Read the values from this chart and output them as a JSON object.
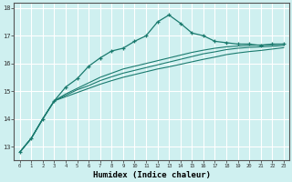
{
  "xlabel": "Humidex (Indice chaleur)",
  "ylabel": "",
  "background_color": "#cff0f0",
  "line_color": "#1a7a6e",
  "grid_color": "#ffffff",
  "xlim": [
    -0.5,
    23.5
  ],
  "ylim": [
    12.5,
    18.2
  ],
  "yticks": [
    13,
    14,
    15,
    16,
    17,
    18
  ],
  "xticks": [
    0,
    1,
    2,
    3,
    4,
    5,
    6,
    7,
    8,
    9,
    10,
    11,
    12,
    13,
    14,
    15,
    16,
    17,
    18,
    19,
    20,
    21,
    22,
    23
  ],
  "series1_x": [
    0,
    1,
    2,
    3,
    4,
    5,
    6,
    7,
    8,
    9,
    10,
    11,
    12,
    13,
    14,
    15,
    16,
    17,
    18,
    19,
    20,
    21,
    22,
    23
  ],
  "series1_y": [
    12.8,
    13.3,
    14.0,
    14.65,
    15.15,
    15.45,
    15.9,
    16.2,
    16.45,
    16.55,
    16.8,
    17.0,
    17.5,
    17.75,
    17.45,
    17.1,
    17.0,
    16.8,
    16.75,
    16.7,
    16.7,
    16.65,
    16.7,
    16.7
  ],
  "series2_x": [
    0,
    1,
    2,
    3,
    4,
    5,
    6,
    7,
    8,
    9,
    10,
    11,
    12,
    13,
    14,
    15,
    16,
    17,
    18,
    19,
    20,
    21,
    22,
    23
  ],
  "series2_y": [
    12.8,
    13.3,
    14.0,
    14.65,
    14.9,
    15.1,
    15.3,
    15.5,
    15.65,
    15.8,
    15.9,
    16.0,
    16.1,
    16.2,
    16.3,
    16.4,
    16.48,
    16.55,
    16.6,
    16.63,
    16.65,
    16.67,
    16.68,
    16.7
  ],
  "series3_x": [
    0,
    1,
    2,
    3,
    4,
    5,
    6,
    7,
    8,
    9,
    10,
    11,
    12,
    13,
    14,
    15,
    16,
    17,
    18,
    19,
    20,
    21,
    22,
    23
  ],
  "series3_y": [
    12.8,
    13.3,
    14.0,
    14.65,
    14.85,
    15.05,
    15.2,
    15.38,
    15.52,
    15.65,
    15.75,
    15.85,
    15.95,
    16.05,
    16.15,
    16.25,
    16.35,
    16.42,
    16.5,
    16.55,
    16.58,
    16.6,
    16.62,
    16.65
  ],
  "series4_x": [
    0,
    1,
    2,
    3,
    4,
    5,
    6,
    7,
    8,
    9,
    10,
    11,
    12,
    13,
    14,
    15,
    16,
    17,
    18,
    19,
    20,
    21,
    22,
    23
  ],
  "series4_y": [
    12.8,
    13.3,
    14.0,
    14.65,
    14.8,
    14.95,
    15.1,
    15.25,
    15.38,
    15.5,
    15.6,
    15.7,
    15.8,
    15.88,
    15.97,
    16.06,
    16.15,
    16.23,
    16.32,
    16.38,
    16.43,
    16.47,
    16.52,
    16.57
  ]
}
